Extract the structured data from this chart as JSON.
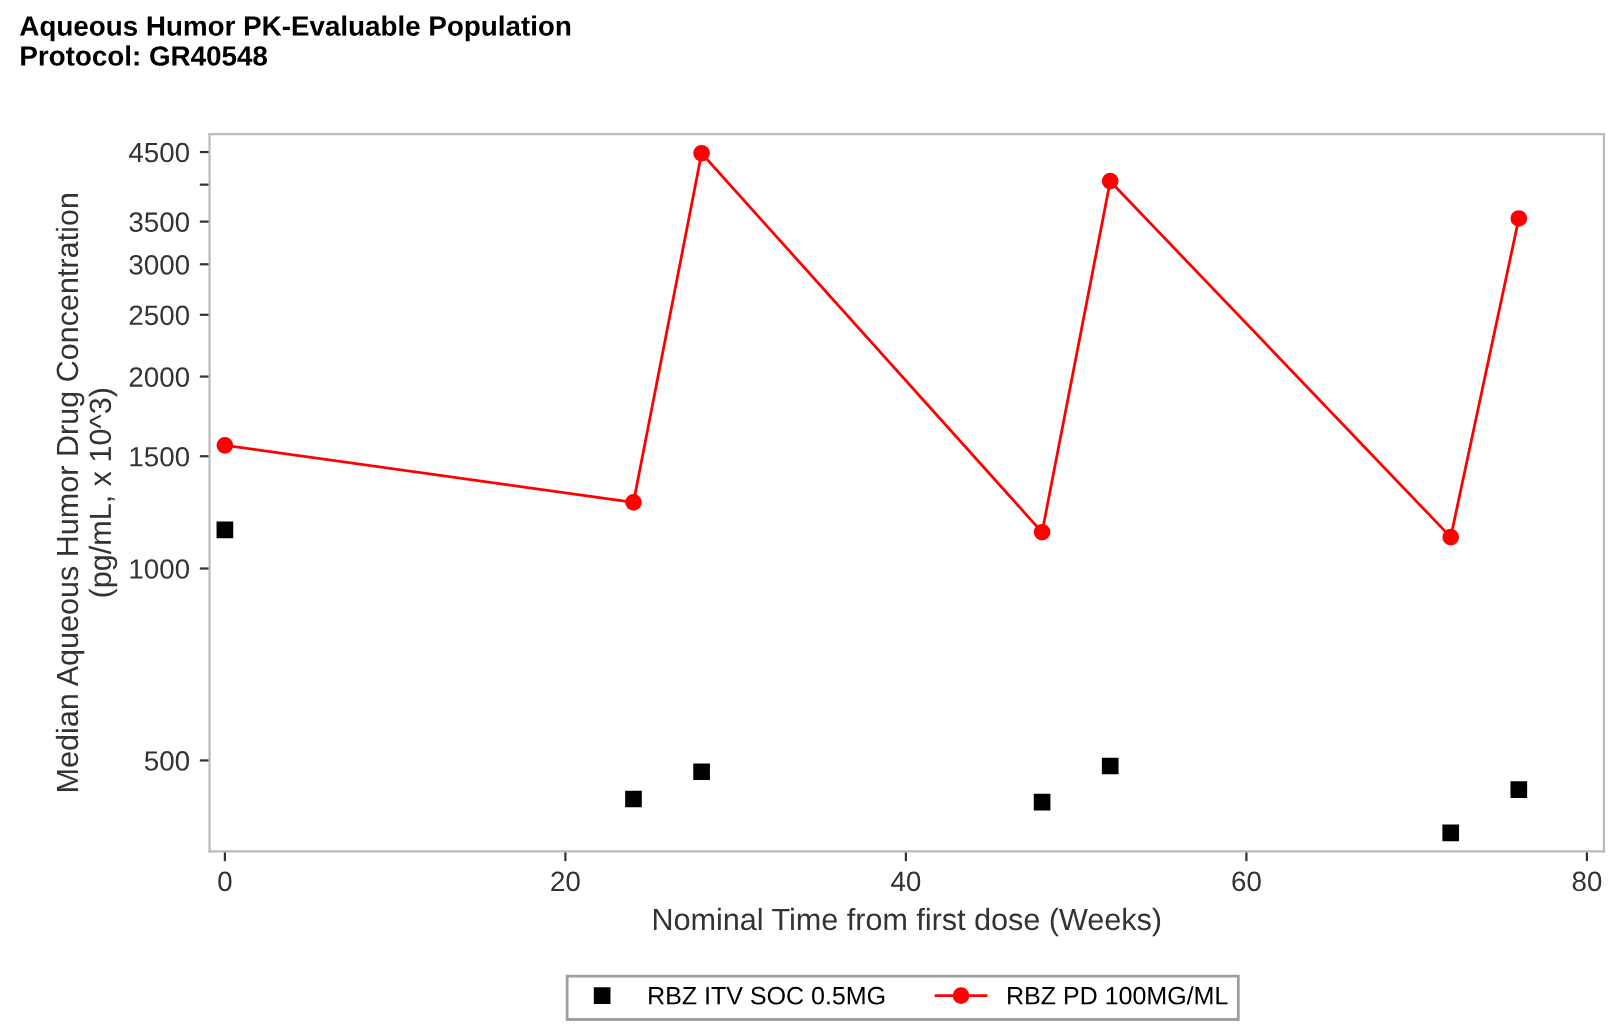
{
  "chart_data": {
    "type": "scatter",
    "title": "Aqueous Humor PK-Evaluable Population\nProtocol: GR40548",
    "xlabel": "Nominal Time from first dose (Weeks)",
    "ylabel": "Median Aqueous Humor Drug Concentration\n(pg/mL, x 10^3)",
    "log": "y",
    "xlim": [
      -0.9,
      81
    ],
    "xticks": [
      0,
      20,
      40,
      60,
      80
    ],
    "ylim": [
      360,
      4800
    ],
    "yticks": [
      500,
      1000,
      1500,
      2000,
      2500,
      3000,
      3500,
      {
        "value": 4000,
        "label": null
      },
      4500
    ],
    "legend": "bottom",
    "grid": false,
    "series": [
      {
        "name": "RBZ ITV SOC 0.5MG",
        "marker": "square",
        "color": "#000000",
        "x": [
          0,
          24,
          28,
          48,
          52,
          72,
          76
        ],
        "values": [
          1150,
          435,
          480,
          430,
          490,
          385,
          450
        ]
      },
      {
        "name": "RBZ PD 100MG/ML",
        "type": "line",
        "marker": "circle",
        "line_style": "solid",
        "color": "#ff0000",
        "x": [
          0,
          24,
          28,
          48,
          52,
          72,
          76
        ],
        "values": [
          1560,
          1270,
          4480,
          1140,
          4050,
          1120,
          3540
        ]
      }
    ]
  }
}
